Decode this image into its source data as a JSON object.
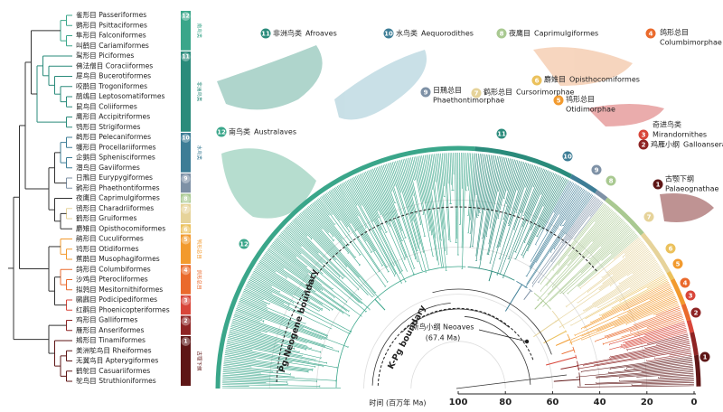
{
  "orders": [
    "雀形目 Passeriformes",
    "鹦形目 Psittaciformes",
    "隼形目 Falconiformes",
    "叫鹤目 Cariamiformes",
    "䴕形目 Piciformes",
    "佛法僧目 Coraciiformes",
    "犀鸟目 Bucerotiformes",
    "咬鹃目 Trogoniformes",
    "鹃鴗目 Leptosomatiformes",
    "鼠鸟目 Coliiformes",
    "鹰形目 Accipitriformes",
    "鸮形目 Strigiformes",
    "鹈形目 Pelecaniformes",
    "鹱形目 Procellariiformes",
    "企鹅目 Sphenisciformes",
    "潜鸟目 Gaviiformes",
    "日鳽目 Eurypygiformes",
    "鹲形目 Phaethontiformes",
    "夜鹰目 Caprimulgiformes",
    "鸻形目 Charadriiformes",
    "鹤形目 Gruiformes",
    "麝雉目 Opisthocomiformes",
    "鹃形目 Cuculiformes",
    "鸨形目 Otidiformes",
    "蕉鹃目 Musophagiformes",
    "鸽形目 Columbiformes",
    "沙鸡目 Pterocliformes",
    "拟鹑目 Mesitornithiformes",
    "鸊鷉目 Podicipediformes",
    "红鹳目 Phoenicopteriformes",
    "鸡形目 Galliformes",
    "雁形目 Anseriformes",
    "鴂形目 Tinamiformes",
    "美洲鸵鸟目 Rheiformes",
    "无翼鸟目 Apterygiformes",
    "鹤鸵目 Casuariiformes",
    "鸵鸟目 Struthioniformes"
  ],
  "clades": [
    {
      "num": "1",
      "cn": "古颚下纲",
      "en": "Palaeognathae"
    },
    {
      "num": "2",
      "cn": "鸡雁小纲",
      "en": "Galloanserae"
    },
    {
      "num": "3",
      "cn": "奇进鸟类",
      "en": "Mirandornithes"
    },
    {
      "num": "4",
      "cn": "鸽形总目",
      "en": "Columbimorphae"
    },
    {
      "num": "5",
      "cn": "鸨形总目",
      "en": "Otidimorphae"
    },
    {
      "num": "6",
      "cn": "麝雉目",
      "en": "Opisthocomiformes"
    },
    {
      "num": "7",
      "cn": "鹤形总目",
      "en": "Cursorimorphae"
    },
    {
      "num": "8",
      "cn": "夜鹰目",
      "en": "Caprimulgiformes"
    },
    {
      "num": "9",
      "cn": "日鳽总目",
      "en": "Phaethontimorphae"
    },
    {
      "num": "10",
      "cn": "水鸟类",
      "en": "Aequorodithes"
    },
    {
      "num": "11",
      "cn": "非洲鸟类",
      "en": "Afroaves"
    },
    {
      "num": "12",
      "cn": "南鸟类",
      "en": "Australaves"
    }
  ],
  "neoaves": {
    "name": "新鸟小纲 Neoaves",
    "age": "(67.4 Ma)"
  },
  "boundaries": {
    "kpg": "K-Pg boundary",
    "pgn": "Pg-Neogene boundary"
  },
  "axis": {
    "label": "时间 (百万年 Ma)",
    "ticks": [
      "100",
      "80",
      "60",
      "40",
      "20",
      "0"
    ]
  }
}
